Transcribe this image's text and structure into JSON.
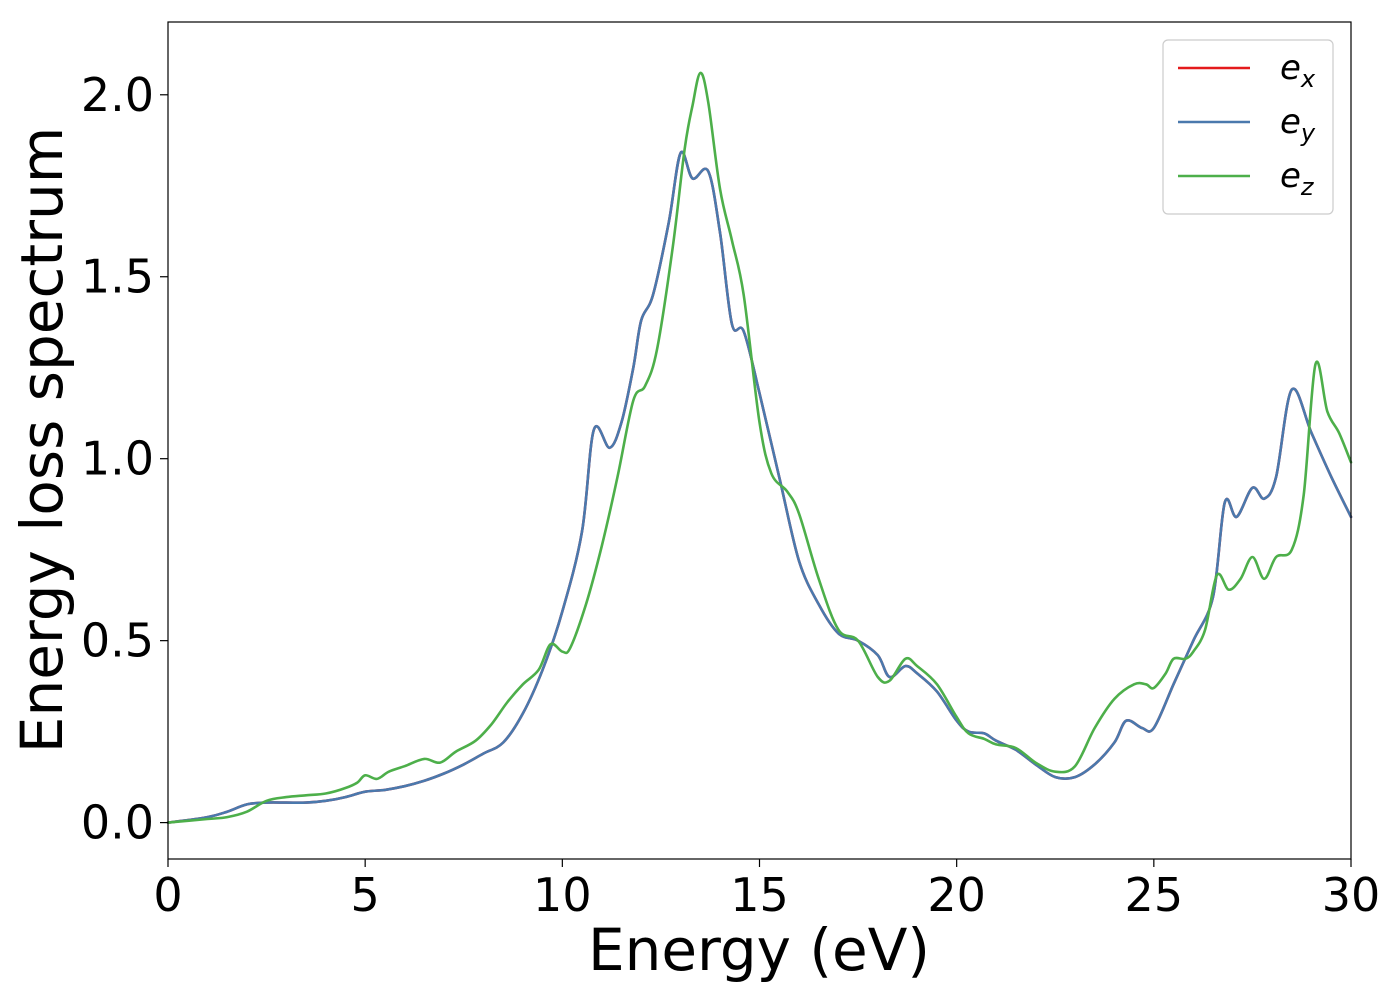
{
  "chart_data": {
    "type": "line",
    "title": "",
    "xlabel": "Energy (eV)",
    "ylabel": "Energy loss spectrum",
    "xlim": [
      0,
      30
    ],
    "ylim": [
      -0.1,
      2.2
    ],
    "xticks": [
      0,
      5,
      10,
      15,
      20,
      25,
      30
    ],
    "xtick_labels": [
      "0",
      "5",
      "10",
      "15",
      "20",
      "25",
      "30"
    ],
    "yticks": [
      0.0,
      0.5,
      1.0,
      1.5,
      2.0
    ],
    "ytick_labels": [
      "0.0",
      "0.5",
      "1.0",
      "1.5",
      "2.0"
    ],
    "grid": false,
    "legend_position": "top-right",
    "series": [
      {
        "name": "e",
        "subscript": "x",
        "color": "#e41a1c",
        "x": [
          0,
          1,
          1.5,
          2,
          2.5,
          3,
          3.5,
          4,
          4.5,
          5,
          5.5,
          6,
          6.5,
          7,
          7.5,
          8,
          8.5,
          9,
          9.5,
          10,
          10.5,
          10.8,
          11.2,
          11.5,
          11.8,
          12.0,
          12.3,
          12.7,
          13.0,
          13.3,
          13.7,
          14.0,
          14.3,
          14.6,
          15.0,
          15.5,
          16.0,
          16.5,
          17.0,
          17.5,
          18.0,
          18.3,
          18.7,
          19.0,
          19.5,
          20.0,
          20.3,
          20.7,
          21.0,
          21.5,
          22.0,
          22.5,
          23.0,
          23.5,
          24.0,
          24.3,
          24.7,
          25.0,
          25.5,
          26.0,
          26.5,
          26.8,
          27.1,
          27.5,
          27.8,
          28.1,
          28.5,
          29.0,
          29.5,
          30.0
        ],
        "values": [
          0.0,
          0.015,
          0.03,
          0.05,
          0.055,
          0.055,
          0.055,
          0.06,
          0.07,
          0.085,
          0.09,
          0.1,
          0.115,
          0.135,
          0.16,
          0.19,
          0.22,
          0.3,
          0.42,
          0.58,
          0.8,
          1.08,
          1.03,
          1.1,
          1.25,
          1.38,
          1.45,
          1.65,
          1.84,
          1.77,
          1.79,
          1.62,
          1.37,
          1.35,
          1.18,
          0.95,
          0.72,
          0.6,
          0.52,
          0.5,
          0.46,
          0.4,
          0.43,
          0.41,
          0.36,
          0.28,
          0.25,
          0.245,
          0.225,
          0.2,
          0.16,
          0.125,
          0.125,
          0.16,
          0.22,
          0.28,
          0.26,
          0.26,
          0.38,
          0.5,
          0.62,
          0.88,
          0.84,
          0.92,
          0.89,
          0.95,
          1.19,
          1.07,
          0.95,
          0.84
        ]
      },
      {
        "name": "e",
        "subscript": "y",
        "color": "#4a79ad",
        "x": [
          0,
          1,
          1.5,
          2,
          2.5,
          3,
          3.5,
          4,
          4.5,
          5,
          5.5,
          6,
          6.5,
          7,
          7.5,
          8,
          8.5,
          9,
          9.5,
          10,
          10.5,
          10.8,
          11.2,
          11.5,
          11.8,
          12.0,
          12.3,
          12.7,
          13.0,
          13.3,
          13.7,
          14.0,
          14.3,
          14.6,
          15.0,
          15.5,
          16.0,
          16.5,
          17.0,
          17.5,
          18.0,
          18.3,
          18.7,
          19.0,
          19.5,
          20.0,
          20.3,
          20.7,
          21.0,
          21.5,
          22.0,
          22.5,
          23.0,
          23.5,
          24.0,
          24.3,
          24.7,
          25.0,
          25.5,
          26.0,
          26.5,
          26.8,
          27.1,
          27.5,
          27.8,
          28.1,
          28.5,
          29.0,
          29.5,
          30.0
        ],
        "values": [
          0.0,
          0.015,
          0.03,
          0.05,
          0.055,
          0.055,
          0.055,
          0.06,
          0.07,
          0.085,
          0.09,
          0.1,
          0.115,
          0.135,
          0.16,
          0.19,
          0.22,
          0.3,
          0.42,
          0.58,
          0.8,
          1.08,
          1.03,
          1.1,
          1.25,
          1.38,
          1.45,
          1.65,
          1.84,
          1.77,
          1.79,
          1.62,
          1.37,
          1.35,
          1.18,
          0.95,
          0.72,
          0.6,
          0.52,
          0.5,
          0.46,
          0.4,
          0.43,
          0.41,
          0.36,
          0.28,
          0.25,
          0.245,
          0.225,
          0.2,
          0.16,
          0.125,
          0.125,
          0.16,
          0.22,
          0.28,
          0.26,
          0.26,
          0.38,
          0.5,
          0.62,
          0.88,
          0.84,
          0.92,
          0.89,
          0.95,
          1.19,
          1.07,
          0.95,
          0.84
        ]
      },
      {
        "name": "e",
        "subscript": "z",
        "color": "#4daf4a",
        "x": [
          0,
          1,
          1.5,
          2,
          2.5,
          3,
          3.5,
          4,
          4.5,
          4.8,
          5.0,
          5.3,
          5.6,
          6.0,
          6.5,
          6.9,
          7.3,
          7.8,
          8.2,
          8.6,
          9.0,
          9.4,
          9.7,
          10.0,
          10.2,
          10.6,
          11.0,
          11.4,
          11.8,
          12.1,
          12.4,
          12.8,
          13.1,
          13.3,
          13.5,
          13.7,
          14.0,
          14.3,
          14.6,
          15.0,
          15.3,
          15.7,
          16.0,
          16.5,
          17.0,
          17.5,
          18.0,
          18.3,
          18.7,
          19.0,
          19.5,
          20.0,
          20.3,
          20.7,
          21.0,
          21.5,
          22.0,
          22.5,
          23.0,
          23.5,
          24.0,
          24.5,
          24.8,
          25.0,
          25.3,
          25.5,
          25.8,
          26.0,
          26.3,
          26.6,
          26.9,
          27.2,
          27.5,
          27.8,
          28.1,
          28.5,
          28.8,
          29.1,
          29.4,
          29.7,
          30.0
        ],
        "values": [
          0.0,
          0.01,
          0.015,
          0.03,
          0.06,
          0.07,
          0.075,
          0.08,
          0.095,
          0.11,
          0.13,
          0.12,
          0.14,
          0.155,
          0.175,
          0.165,
          0.195,
          0.225,
          0.27,
          0.33,
          0.38,
          0.42,
          0.49,
          0.47,
          0.48,
          0.6,
          0.76,
          0.95,
          1.16,
          1.2,
          1.3,
          1.58,
          1.85,
          1.97,
          2.06,
          1.98,
          1.74,
          1.6,
          1.45,
          1.1,
          0.96,
          0.91,
          0.85,
          0.67,
          0.53,
          0.5,
          0.4,
          0.39,
          0.45,
          0.43,
          0.38,
          0.29,
          0.245,
          0.23,
          0.215,
          0.205,
          0.165,
          0.14,
          0.155,
          0.26,
          0.34,
          0.38,
          0.38,
          0.37,
          0.41,
          0.45,
          0.45,
          0.47,
          0.53,
          0.68,
          0.64,
          0.67,
          0.73,
          0.67,
          0.73,
          0.75,
          0.9,
          1.26,
          1.13,
          1.07,
          0.99
        ]
      }
    ]
  }
}
